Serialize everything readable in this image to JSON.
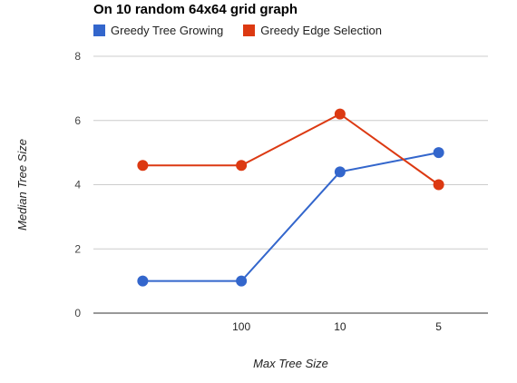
{
  "chart_data": {
    "type": "line",
    "title": "On 10 random 64x64 grid graph",
    "xlabel": "Max Tree Size",
    "ylabel": "Median Tree Size",
    "categories": [
      "",
      "100",
      "10",
      "5"
    ],
    "ylim": [
      0,
      8
    ],
    "yticks": [
      0,
      2,
      4,
      6,
      8
    ],
    "grid": true,
    "legend_position": "top",
    "series": [
      {
        "name": "Greedy Tree Growing",
        "color": "#3366cc",
        "values": [
          1,
          1,
          4.4,
          5
        ]
      },
      {
        "name": "Greedy Edge Selection",
        "color": "#dc3912",
        "values": [
          4.6,
          4.6,
          6.2,
          4
        ]
      }
    ]
  }
}
